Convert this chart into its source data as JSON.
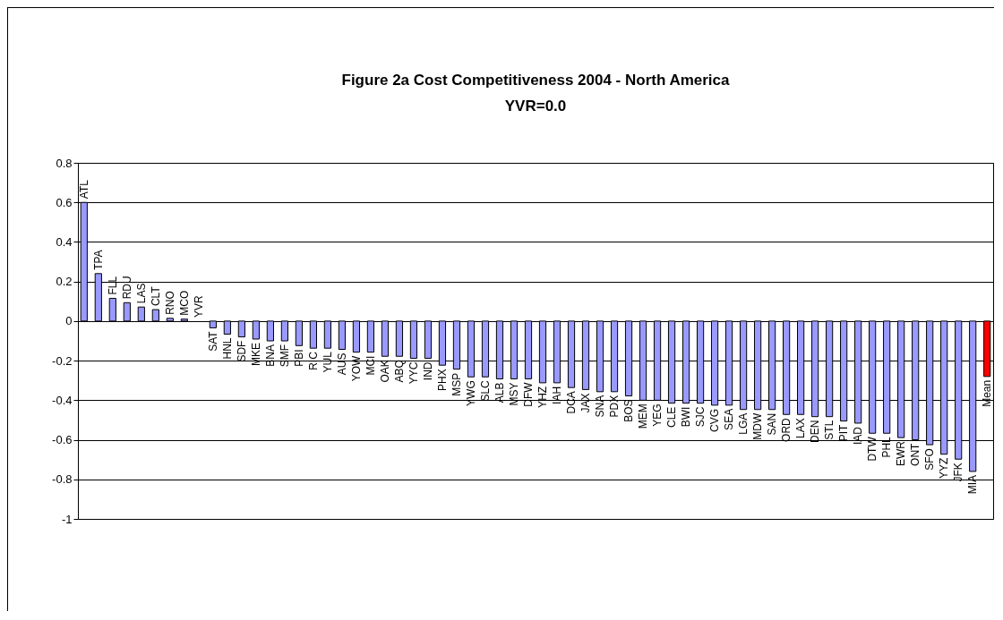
{
  "chart_data": {
    "type": "bar",
    "title": "Figure 2a Cost Competitiveness 2004 - North America",
    "subtitle": "YVR=0.0",
    "categories": [
      "ATL",
      "TPA",
      "FLL",
      "RDU",
      "LAS",
      "CLT",
      "RNO",
      "MCO",
      "YVR",
      "SAT",
      "HNL",
      "SDF",
      "MKE",
      "BNA",
      "SMF",
      "PBI",
      "RIC",
      "YUL",
      "AUS",
      "YOW",
      "MCI",
      "OAK",
      "ABQ",
      "YYC",
      "IND",
      "PHX",
      "MSP",
      "YWG",
      "SLC",
      "ALB",
      "MSY",
      "DFW",
      "YHZ",
      "IAH",
      "DCA",
      "JAX",
      "SNA",
      "PDX",
      "BOS",
      "MEM",
      "YEG",
      "CLE",
      "BWI",
      "SJC",
      "CVG",
      "SEA",
      "LGA",
      "MDW",
      "SAN",
      "ORD",
      "LAX",
      "DEN",
      "STL",
      "PIT",
      "IAD",
      "DTW",
      "PHL",
      "EWR",
      "ONT",
      "SFO",
      "YYZ",
      "JFK",
      "MIA",
      "Mean"
    ],
    "values": [
      0.6,
      0.24,
      0.115,
      0.093,
      0.071,
      0.058,
      0.014,
      0.01,
      0.0,
      -0.034,
      -0.066,
      -0.08,
      -0.091,
      -0.1,
      -0.1,
      -0.124,
      -0.137,
      -0.137,
      -0.143,
      -0.157,
      -0.157,
      -0.178,
      -0.178,
      -0.188,
      -0.188,
      -0.223,
      -0.243,
      -0.282,
      -0.282,
      -0.292,
      -0.292,
      -0.292,
      -0.312,
      -0.312,
      -0.336,
      -0.346,
      -0.357,
      -0.357,
      -0.378,
      -0.4,
      -0.4,
      -0.415,
      -0.415,
      -0.415,
      -0.425,
      -0.425,
      -0.447,
      -0.447,
      -0.447,
      -0.472,
      -0.472,
      -0.483,
      -0.483,
      -0.505,
      -0.516,
      -0.567,
      -0.567,
      -0.589,
      -0.6,
      -0.625,
      -0.673,
      -0.698,
      -0.76,
      -0.28
    ],
    "colors": [
      "#9999ff",
      "#9999ff",
      "#9999ff",
      "#9999ff",
      "#9999ff",
      "#9999ff",
      "#9999ff",
      "#9999ff",
      "#9999ff",
      "#9999ff",
      "#9999ff",
      "#9999ff",
      "#9999ff",
      "#9999ff",
      "#9999ff",
      "#9999ff",
      "#9999ff",
      "#9999ff",
      "#9999ff",
      "#9999ff",
      "#9999ff",
      "#9999ff",
      "#9999ff",
      "#9999ff",
      "#9999ff",
      "#9999ff",
      "#9999ff",
      "#9999ff",
      "#9999ff",
      "#9999ff",
      "#9999ff",
      "#9999ff",
      "#9999ff",
      "#9999ff",
      "#9999ff",
      "#9999ff",
      "#9999ff",
      "#9999ff",
      "#9999ff",
      "#9999ff",
      "#9999ff",
      "#9999ff",
      "#9999ff",
      "#9999ff",
      "#9999ff",
      "#9999ff",
      "#9999ff",
      "#9999ff",
      "#9999ff",
      "#9999ff",
      "#9999ff",
      "#9999ff",
      "#9999ff",
      "#9999ff",
      "#9999ff",
      "#9999ff",
      "#9999ff",
      "#9999ff",
      "#9999ff",
      "#9999ff",
      "#9999ff",
      "#9999ff",
      "#9999ff",
      "#ff0000"
    ],
    "ylim": [
      -1,
      0.8
    ],
    "yticks": [
      -1,
      -0.8,
      -0.6,
      -0.4,
      -0.2,
      0,
      0.2,
      0.4,
      0.6,
      0.8
    ],
    "grid": "y",
    "tick_labels": "y"
  }
}
